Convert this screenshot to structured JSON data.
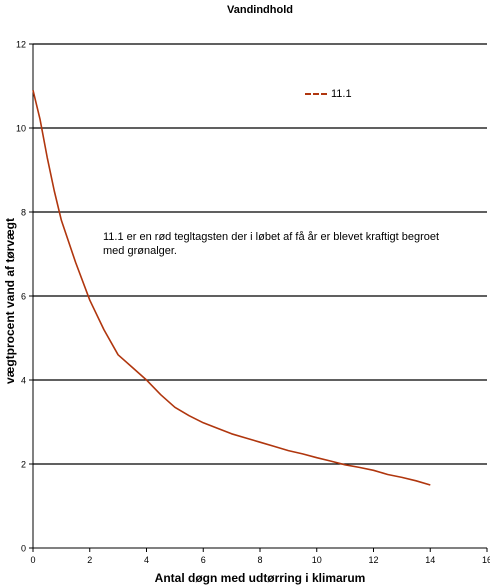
{
  "chart_data": {
    "type": "line",
    "title": "Vandindhold",
    "xlabel": "Antal døgn med udtørring i klimarum",
    "ylabel": "vægtprocent vand af tørvægt",
    "xlim": [
      0,
      16
    ],
    "ylim": [
      0,
      12
    ],
    "xticks": [
      0,
      2,
      4,
      6,
      8,
      10,
      12,
      14,
      16
    ],
    "yticks": [
      0,
      2,
      4,
      6,
      8,
      10,
      12
    ],
    "grid": "horizontal",
    "legend_position": "top-right",
    "series": [
      {
        "name": "11.1",
        "color": "#b0360e",
        "x": [
          0,
          0.25,
          0.5,
          0.75,
          1,
          1.5,
          2,
          2.5,
          3,
          3.5,
          4,
          4.5,
          5,
          5.5,
          6,
          6.5,
          7,
          7.5,
          8,
          8.5,
          9,
          9.5,
          10,
          10.5,
          11,
          11.5,
          12,
          12.5,
          13,
          13.5,
          14
        ],
        "y": [
          10.9,
          10.2,
          9.3,
          8.5,
          7.8,
          6.8,
          5.9,
          5.2,
          4.6,
          4.3,
          4.0,
          3.65,
          3.35,
          3.15,
          2.98,
          2.85,
          2.72,
          2.62,
          2.52,
          2.42,
          2.32,
          2.24,
          2.15,
          2.07,
          1.98,
          1.92,
          1.85,
          1.75,
          1.68,
          1.6,
          1.5
        ]
      }
    ],
    "annotations": [
      "11.1 er en rød tegltagsten der i løbet af få år er blevet kraftigt begroet med grønalger."
    ]
  }
}
